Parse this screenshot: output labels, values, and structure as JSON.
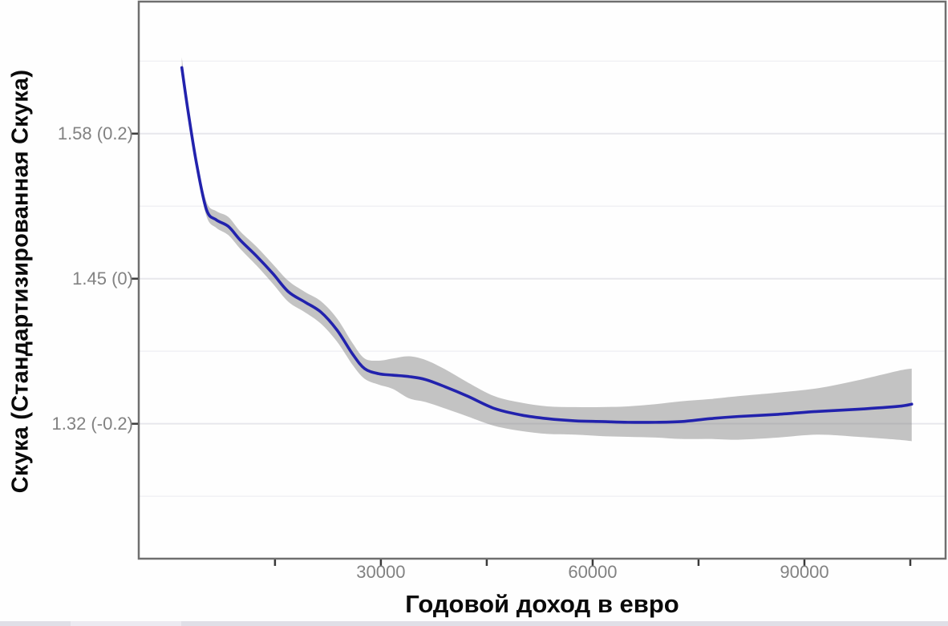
{
  "figure": {
    "background": "#fefefe",
    "panel_border_color": "#6f6f6f",
    "grid_major_color": "#e7e7ec",
    "grid_minor_color": "#f1f1f4",
    "axis_tick_color": "#3a3a3a",
    "tick_label_color": "#828282",
    "axis_title_color": "#0a0a0a"
  },
  "chart_data": {
    "type": "line",
    "title": "",
    "xlabel": "Годовой доход в евро",
    "ylabel": "Скука (Стандартизированная Скука)",
    "legend": "none",
    "grid": "horizontal-only",
    "x_axis": {
      "lim": [
        -4300,
        110000
      ],
      "ticks": [
        {
          "value": 15000,
          "label": ""
        },
        {
          "value": 30000,
          "label": "30000"
        },
        {
          "value": 45000,
          "label": ""
        },
        {
          "value": 60000,
          "label": "60000"
        },
        {
          "value": 75000,
          "label": ""
        },
        {
          "value": 90000,
          "label": "90000"
        },
        {
          "value": 105000,
          "label": ""
        }
      ]
    },
    "y_axis": {
      "lim": [
        -0.386,
        0.382
      ],
      "ticks": [
        {
          "value": 0.2,
          "label": "1.58 (0.2)"
        },
        {
          "value": 0.0,
          "label": "1.45 (0)"
        },
        {
          "value": -0.2,
          "label": "1.32 (-0.2)"
        }
      ],
      "minor_gridlines": [
        0.3,
        0.1,
        -0.1,
        -0.3
      ]
    },
    "series": [
      {
        "name": "smooth-fit-with-ci",
        "line_color": "#2222ad",
        "band_color": "rgba(124,124,124,0.45)",
        "points": [
          {
            "x": 1800,
            "y": 0.291,
            "lo": 0.286,
            "hi": 0.305
          },
          {
            "x": 2700,
            "y": 0.23,
            "lo": 0.224,
            "hi": 0.239
          },
          {
            "x": 3900,
            "y": 0.158,
            "lo": 0.151,
            "hi": 0.167
          },
          {
            "x": 5300,
            "y": 0.095,
            "lo": 0.086,
            "hi": 0.106
          },
          {
            "x": 6700,
            "y": 0.081,
            "lo": 0.07,
            "hi": 0.093
          },
          {
            "x": 8400,
            "y": 0.072,
            "lo": 0.06,
            "hi": 0.085
          },
          {
            "x": 10100,
            "y": 0.053,
            "lo": 0.041,
            "hi": 0.065
          },
          {
            "x": 12400,
            "y": 0.031,
            "lo": 0.018,
            "hi": 0.044
          },
          {
            "x": 14700,
            "y": 0.007,
            "lo": -0.007,
            "hi": 0.02
          },
          {
            "x": 16900,
            "y": -0.018,
            "lo": -0.032,
            "hi": -0.003
          },
          {
            "x": 19200,
            "y": -0.032,
            "lo": -0.046,
            "hi": -0.018
          },
          {
            "x": 21500,
            "y": -0.046,
            "lo": -0.062,
            "hi": -0.031
          },
          {
            "x": 23800,
            "y": -0.071,
            "lo": -0.087,
            "hi": -0.055
          },
          {
            "x": 26000,
            "y": -0.104,
            "lo": -0.119,
            "hi": -0.089
          },
          {
            "x": 27700,
            "y": -0.124,
            "lo": -0.138,
            "hi": -0.11
          },
          {
            "x": 29700,
            "y": -0.131,
            "lo": -0.146,
            "hi": -0.113
          },
          {
            "x": 31700,
            "y": -0.133,
            "lo": -0.152,
            "hi": -0.11
          },
          {
            "x": 34000,
            "y": -0.135,
            "lo": -0.165,
            "hi": -0.107
          },
          {
            "x": 36300,
            "y": -0.139,
            "lo": -0.17,
            "hi": -0.112
          },
          {
            "x": 39100,
            "y": -0.149,
            "lo": -0.179,
            "hi": -0.125
          },
          {
            "x": 42300,
            "y": -0.162,
            "lo": -0.19,
            "hi": -0.143
          },
          {
            "x": 46100,
            "y": -0.179,
            "lo": -0.203,
            "hi": -0.162
          },
          {
            "x": 49900,
            "y": -0.188,
            "lo": -0.21,
            "hi": -0.171
          },
          {
            "x": 53600,
            "y": -0.193,
            "lo": -0.214,
            "hi": -0.176
          },
          {
            "x": 57500,
            "y": -0.196,
            "lo": -0.215,
            "hi": -0.177
          },
          {
            "x": 61300,
            "y": -0.197,
            "lo": -0.217,
            "hi": -0.177
          },
          {
            "x": 65000,
            "y": -0.198,
            "lo": -0.218,
            "hi": -0.176
          },
          {
            "x": 68900,
            "y": -0.198,
            "lo": -0.219,
            "hi": -0.173
          },
          {
            "x": 72600,
            "y": -0.197,
            "lo": -0.221,
            "hi": -0.169
          },
          {
            "x": 76600,
            "y": -0.193,
            "lo": -0.221,
            "hi": -0.166
          },
          {
            "x": 80600,
            "y": -0.19,
            "lo": -0.222,
            "hi": -0.162
          },
          {
            "x": 86300,
            "y": -0.187,
            "lo": -0.219,
            "hi": -0.157
          },
          {
            "x": 91900,
            "y": -0.183,
            "lo": -0.215,
            "hi": -0.151
          },
          {
            "x": 97600,
            "y": -0.18,
            "lo": -0.218,
            "hi": -0.14
          },
          {
            "x": 103300,
            "y": -0.176,
            "lo": -0.222,
            "hi": -0.127
          },
          {
            "x": 105200,
            "y": -0.173,
            "lo": -0.224,
            "hi": -0.124
          }
        ]
      }
    ]
  }
}
